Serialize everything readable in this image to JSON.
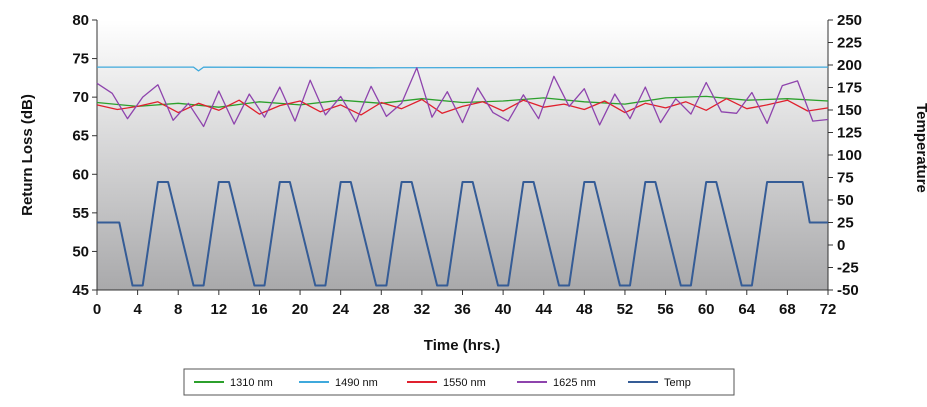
{
  "chart_data": {
    "type": "line",
    "title": "",
    "xlabel": "Time (hrs.)",
    "ylabel": "Return Loss (dB)",
    "y2label": "Temperature",
    "xlim": [
      0,
      72
    ],
    "ylim": [
      45,
      80
    ],
    "y2lim": [
      -50,
      250
    ],
    "x_ticks": [
      0,
      4,
      8,
      12,
      16,
      20,
      24,
      28,
      32,
      36,
      40,
      44,
      48,
      52,
      56,
      60,
      64,
      68,
      72
    ],
    "y_ticks": [
      45,
      50,
      55,
      60,
      65,
      70,
      75,
      80
    ],
    "y2_ticks": [
      -50,
      -25,
      0,
      25,
      50,
      75,
      100,
      125,
      150,
      175,
      200,
      225,
      250
    ],
    "legend_position": "bottom",
    "grid": false,
    "background": "vertical gradient white to gray",
    "series": [
      {
        "name": "1310 nm",
        "axis": "left",
        "color": "#2ca02c",
        "x": [
          0,
          4,
          8,
          12,
          16,
          20,
          24,
          28,
          32,
          36,
          40,
          44,
          48,
          52,
          56,
          60,
          64,
          68,
          72
        ],
        "values": [
          69.3,
          68.8,
          69.2,
          68.7,
          69.4,
          69.0,
          69.6,
          69.2,
          69.8,
          69.3,
          69.5,
          69.9,
          69.4,
          69.1,
          69.9,
          70.1,
          69.6,
          69.8,
          69.5
        ]
      },
      {
        "name": "1490 nm",
        "axis": "left",
        "color": "#3fa9dc",
        "x": [
          0,
          9.5,
          10.0,
          10.5,
          27,
          72
        ],
        "values": [
          73.9,
          73.9,
          73.4,
          73.9,
          73.8,
          73.9
        ]
      },
      {
        "name": "1550 nm",
        "axis": "left",
        "color": "#e0202e",
        "x": [
          0,
          2,
          4,
          6,
          8,
          10,
          12,
          14,
          16,
          18,
          20,
          22,
          24,
          26,
          28,
          30,
          32,
          34,
          36,
          38,
          40,
          42,
          44,
          46,
          48,
          50,
          52,
          54,
          56,
          58,
          60,
          62,
          64,
          66,
          68,
          70,
          72
        ],
        "values": [
          69.0,
          68.4,
          68.8,
          69.4,
          68.0,
          69.2,
          68.3,
          69.6,
          67.8,
          68.9,
          69.5,
          68.1,
          69.0,
          67.7,
          69.3,
          68.5,
          69.7,
          67.9,
          68.8,
          69.4,
          68.2,
          69.6,
          68.7,
          69.1,
          68.4,
          69.5,
          68.0,
          69.2,
          68.6,
          69.4,
          68.3,
          69.8,
          68.5,
          69.0,
          69.6,
          68.2,
          68.6
        ]
      },
      {
        "name": "1625 nm",
        "axis": "left",
        "color": "#8e44ad",
        "x": [
          0,
          1.5,
          3,
          4.5,
          6,
          7.5,
          9,
          10.5,
          12,
          13.5,
          15,
          16.5,
          18,
          19.5,
          21,
          22.5,
          24,
          25.5,
          27,
          28.5,
          30,
          31.5,
          33,
          34.5,
          36,
          37.5,
          39,
          40.5,
          42,
          43.5,
          45,
          46.5,
          48,
          49.5,
          51,
          52.5,
          54,
          55.5,
          57,
          58.5,
          60,
          61.5,
          63,
          64.5,
          66,
          67.5,
          69,
          70.5,
          72
        ],
        "values": [
          71.8,
          70.5,
          67.2,
          70.0,
          71.6,
          67.0,
          69.2,
          66.2,
          70.8,
          66.5,
          70.4,
          67.4,
          71.3,
          66.9,
          72.2,
          67.7,
          70.1,
          66.8,
          71.4,
          67.5,
          69.2,
          73.8,
          67.4,
          70.7,
          66.7,
          71.2,
          68.0,
          66.9,
          70.3,
          67.2,
          72.7,
          68.8,
          71.1,
          66.4,
          70.4,
          67.2,
          71.3,
          66.7,
          69.8,
          67.8,
          71.9,
          68.1,
          67.9,
          70.6,
          66.6,
          71.5,
          72.1,
          66.9,
          67.1
        ]
      },
      {
        "name": "Temp",
        "axis": "right",
        "color": "#355c96",
        "x": [
          0,
          2.2,
          3.5,
          4.5,
          6,
          7,
          9.5,
          10.5,
          12,
          13,
          15.5,
          16.5,
          18,
          19,
          21.5,
          22.5,
          24,
          25,
          27.5,
          28.5,
          30,
          31,
          33.5,
          34.5,
          36,
          37,
          39.5,
          40.5,
          42,
          43,
          45.5,
          46.5,
          48,
          49,
          51.5,
          52.5,
          54,
          55,
          57.5,
          58.5,
          60,
          61,
          63.5,
          64.5,
          66,
          67,
          69.5,
          70.2,
          72
        ],
        "values": [
          25,
          25,
          -45,
          -45,
          70,
          70,
          -45,
          -45,
          70,
          70,
          -45,
          -45,
          70,
          70,
          -45,
          -45,
          70,
          70,
          -45,
          -45,
          70,
          70,
          -45,
          -45,
          70,
          70,
          -45,
          -45,
          70,
          70,
          -45,
          -45,
          70,
          70,
          -45,
          -45,
          70,
          70,
          -45,
          -45,
          70,
          70,
          -45,
          -45,
          70,
          70,
          70,
          25,
          25
        ]
      }
    ]
  }
}
